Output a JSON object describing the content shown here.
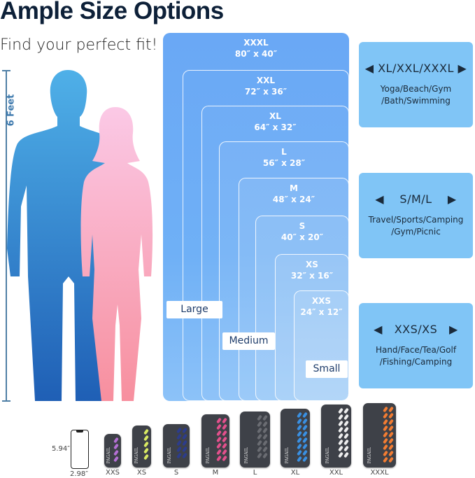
{
  "header": {
    "title": "Ample Size Options",
    "subtitle": "Find your perfect fit!"
  },
  "height_marker": "6 Feet",
  "sizes": [
    {
      "name": "XXXL",
      "dims": "80″ x 40″"
    },
    {
      "name": "XXL",
      "dims": "72″ x 36″"
    },
    {
      "name": "XL",
      "dims": "64″ x 32″"
    },
    {
      "name": "L",
      "dims": "56″ x 28″"
    },
    {
      "name": "M",
      "dims": "48″ x 24″"
    },
    {
      "name": "S",
      "dims": "40″ x 20″"
    },
    {
      "name": "XS",
      "dims": "32″ x 16″"
    },
    {
      "name": "XXS",
      "dims": "24″ x 12″"
    }
  ],
  "groups": {
    "large": "Large",
    "medium": "Medium",
    "small": "Small"
  },
  "panels": [
    {
      "heading": "◀ XL/XXL/XXXL ▶",
      "line1": "Yoga/Beach/Gym",
      "line2": "/Bath/Swimming"
    },
    {
      "heading": "◀    S/M/L    ▶",
      "line1": "Travel/Sports/Camping",
      "line2": "/Gym/Picnic"
    },
    {
      "heading": "◀   XXS/XS   ▶",
      "line1": "Hand/Face/Tea/Golf",
      "line2": "/Fishing/Camping"
    }
  ],
  "phone": {
    "height": "5.94″",
    "width": "2.98″"
  },
  "towels": [
    {
      "label": "XXS",
      "color": "#b46fd4"
    },
    {
      "label": "XS",
      "color": "#d9ea62"
    },
    {
      "label": "S",
      "color": "#2c3c8c"
    },
    {
      "label": "M",
      "color": "#e2508c"
    },
    {
      "label": "L",
      "color": "#6a6c72"
    },
    {
      "label": "XL",
      "color": "#3a90e2"
    },
    {
      "label": "XXL",
      "color": "#eeeeee"
    },
    {
      "label": "XXXL",
      "color": "#f27c32"
    }
  ],
  "brand": "PAGAIL"
}
